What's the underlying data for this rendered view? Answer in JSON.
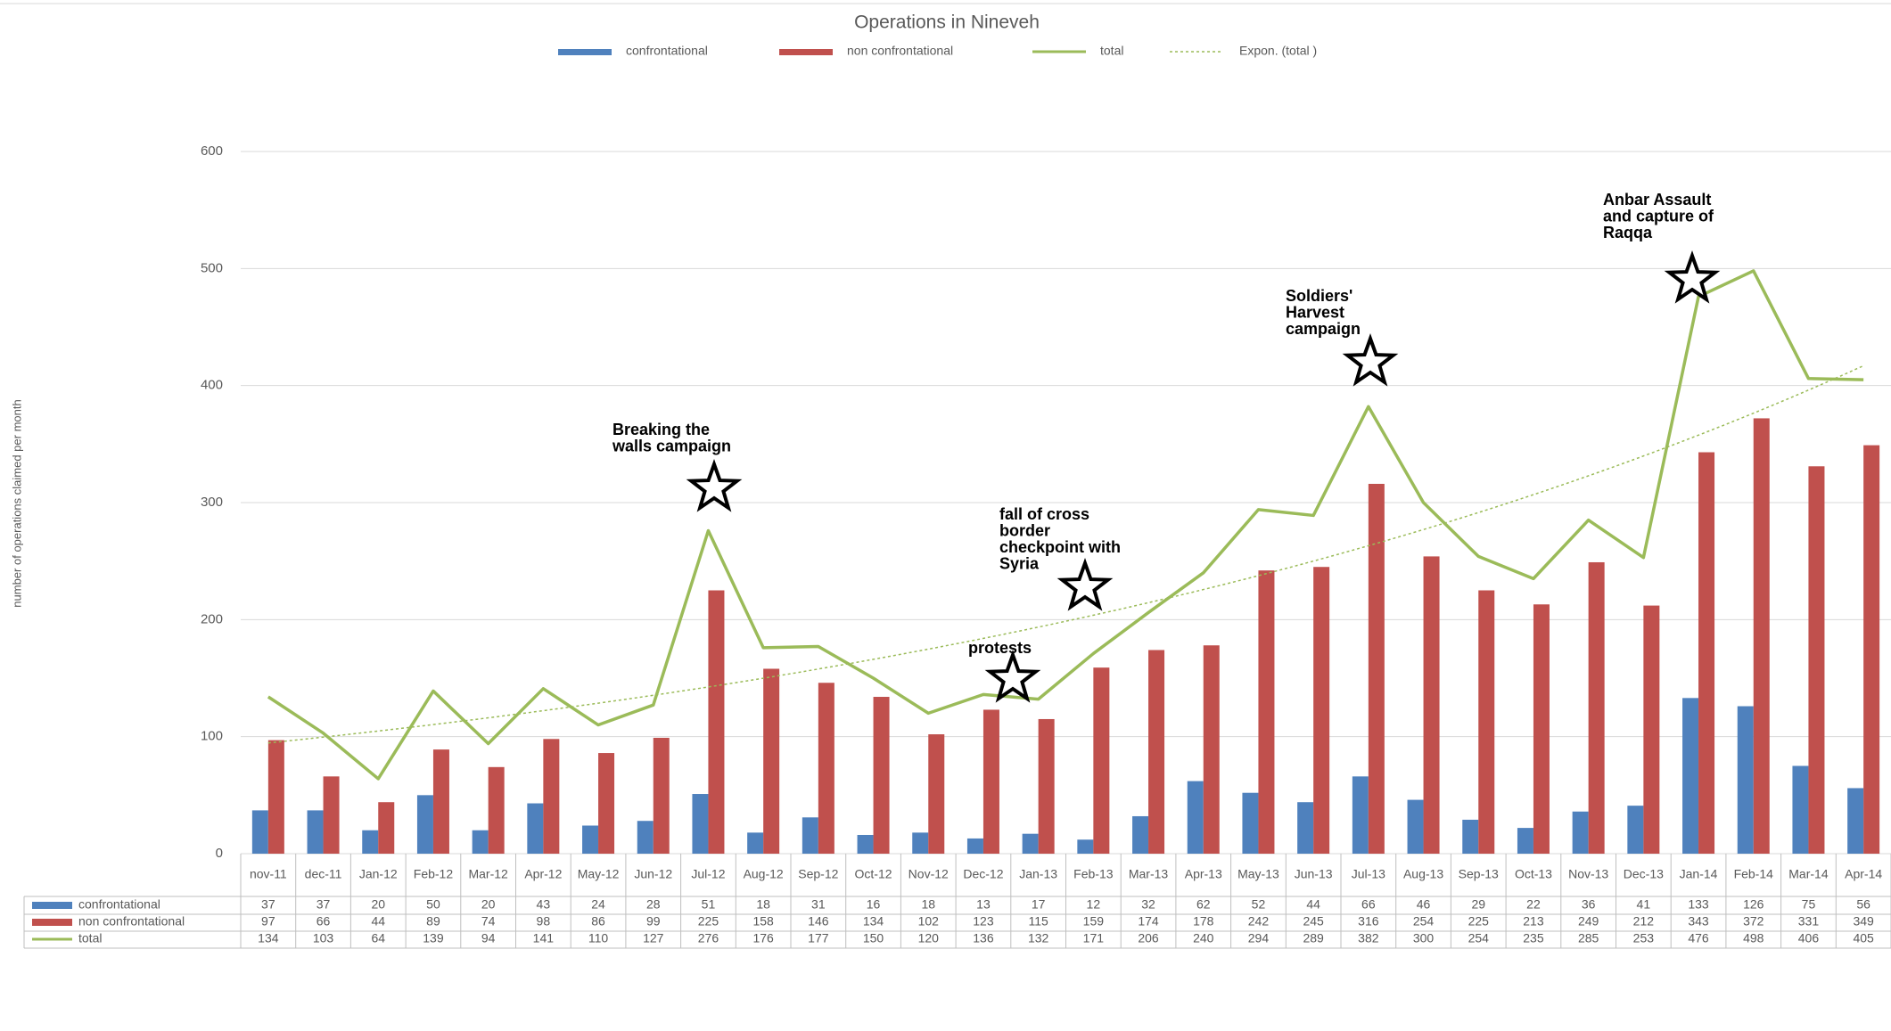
{
  "chart_data": {
    "type": "bar",
    "title": "Operations in Nineveh",
    "y_label": "number of operations claimed per month",
    "categories": [
      "nov-11",
      "dec-11",
      "Jan-12",
      "Feb-12",
      "Mar-12",
      "Apr-12",
      "May-12",
      "Jun-12",
      "Jul-12",
      "Aug-12",
      "Sep-12",
      "Oct-12",
      "Nov-12",
      "Dec-12",
      "Jan-13",
      "Feb-13",
      "Mar-13",
      "Apr-13",
      "May-13",
      "Jun-13",
      "Jul-13",
      "Aug-13",
      "Sep-13",
      "Oct-13",
      "Nov-13",
      "Dec-13",
      "Jan-14",
      "Feb-14",
      "Mar-14",
      "Apr-14"
    ],
    "series": [
      {
        "name": "confrontational",
        "type": "bar",
        "color": "#4f81bd",
        "values": [
          37,
          37,
          20,
          50,
          20,
          43,
          24,
          28,
          51,
          18,
          31,
          16,
          18,
          13,
          17,
          12,
          32,
          62,
          52,
          44,
          66,
          46,
          29,
          22,
          36,
          41,
          133,
          126,
          75,
          56
        ]
      },
      {
        "name": "non confrontational",
        "type": "bar",
        "color": "#c0504d",
        "values": [
          97,
          66,
          44,
          89,
          74,
          98,
          86,
          99,
          225,
          158,
          146,
          134,
          102,
          123,
          115,
          159,
          174,
          178,
          242,
          245,
          316,
          254,
          225,
          213,
          249,
          212,
          343,
          372,
          331,
          349
        ]
      },
      {
        "name": "total",
        "type": "line",
        "color": "#9bbb59",
        "values": [
          134,
          103,
          64,
          139,
          94,
          141,
          110,
          127,
          276,
          176,
          177,
          150,
          120,
          136,
          132,
          171,
          206,
          240,
          294,
          289,
          382,
          300,
          254,
          235,
          285,
          253,
          476,
          498,
          406,
          405
        ]
      }
    ],
    "trendline": {
      "name": "Expon. (total )",
      "fit": "exponential",
      "color": "#9bbb59"
    },
    "annotations": [
      {
        "lines": [
          "Breaking the",
          "walls campaign"
        ]
      },
      {
        "lines": [
          "protests"
        ]
      },
      {
        "lines": [
          "fall of cross",
          "border",
          "checkpoint with",
          "Syria"
        ]
      },
      {
        "lines": [
          "Soldiers'",
          "Harvest",
          "campaign"
        ]
      },
      {
        "lines": [
          "Anbar Assault",
          "and capture of",
          "Raqqa"
        ]
      }
    ],
    "ylim": [
      0,
      600
    ],
    "yticks": [
      0,
      100,
      200,
      300,
      400,
      500,
      600
    ],
    "grid": true
  }
}
